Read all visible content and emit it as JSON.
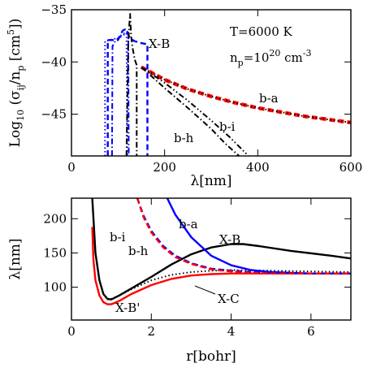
{
  "chart_data": [
    {
      "type": "line",
      "xlabel": "λ[nm]",
      "ylabel": "Log10 (σij/np [cm5])",
      "xlim": [
        0,
        600
      ],
      "ylim": [
        -49,
        -35
      ],
      "xticks": [
        0,
        200,
        400,
        600
      ],
      "yticks": [
        -35,
        -40,
        -45
      ],
      "annotations": {
        "temperature": "T=6000 K",
        "density": "np=10^20 cm^-3",
        "xb": "X-B",
        "ba": "b-a",
        "bi": "b-i",
        "bh": "b-h"
      },
      "series": [
        {
          "key": "b-a",
          "color": "#ff0000",
          "style": "dashed-thick",
          "x": [
            150,
            200,
            250,
            300,
            350,
            400,
            450,
            500,
            550,
            600
          ],
          "y": [
            -40.5,
            -41.7,
            -42.6,
            -43.3,
            -43.9,
            -44.4,
            -44.8,
            -45.2,
            -45.5,
            -45.8
          ]
        },
        {
          "key": "b-a-dots",
          "color": "#000000",
          "style": "dotted",
          "x": [
            150,
            200,
            250,
            300,
            350,
            400,
            450,
            500,
            550,
            600
          ],
          "y": [
            -40.5,
            -41.7,
            -42.6,
            -43.3,
            -43.9,
            -44.4,
            -44.8,
            -45.2,
            -45.5,
            -45.8
          ]
        },
        {
          "key": "b-i",
          "color": "#000000",
          "style": "dashdot",
          "x": [
            150,
            200,
            250,
            300,
            330,
            360
          ],
          "y": [
            -40.5,
            -42.5,
            -44.4,
            -46.4,
            -47.8,
            -49.0
          ]
        },
        {
          "key": "b-h",
          "color": "#000000",
          "style": "dashdotdot",
          "x": [
            150,
            200,
            250,
            300,
            340,
            380
          ],
          "y": [
            -40.5,
            -42.0,
            -43.7,
            -45.6,
            -47.2,
            -49.0
          ]
        },
        {
          "key": "X-B-blue-dash",
          "color": "#0000ff",
          "style": "dashed",
          "x": [
            78,
            78,
            100,
            105,
            110,
            115,
            119,
            125,
            135,
            150,
            162,
            163,
            163
          ],
          "y": [
            -49,
            -37.9,
            -37.9,
            -37.4,
            -37.0,
            -36.9,
            -37.1,
            -37.7,
            -38.0,
            -38.2,
            -38.3,
            -38.3,
            -49
          ]
        },
        {
          "key": "X-B-blue-dashdot",
          "color": "#0000ff",
          "style": "dashdot",
          "x": [
            87,
            88,
            95,
            105,
            112,
            118,
            120,
            122,
            123
          ],
          "y": [
            -49,
            -38.5,
            -37.9,
            -37.6,
            -37.4,
            -37.2,
            -37.1,
            -37.2,
            -49
          ]
        },
        {
          "key": "X-B-blue-dotted",
          "color": "#0000ff",
          "style": "dotted",
          "x": [
            72,
            72,
            100,
            110,
            118,
            120
          ],
          "y": [
            -49,
            -38.0,
            -37.7,
            -37.3,
            -37.2,
            -49
          ]
        },
        {
          "key": "X-B-black-spike",
          "color": "#000000",
          "style": "dashdot",
          "x": [
            118,
            122,
            124,
            126,
            128,
            131,
            136,
            140,
            140
          ],
          "y": [
            -49,
            -38.2,
            -36.5,
            -35.4,
            -37.5,
            -38.6,
            -39.8,
            -40.3,
            -49
          ]
        }
      ]
    },
    {
      "type": "line",
      "xlabel": "r[bohr]",
      "ylabel": "λ[nm]",
      "xlim": [
        0,
        7
      ],
      "ylim": [
        52,
        230
      ],
      "xticks": [
        0,
        2,
        4,
        6
      ],
      "yticks": [
        100,
        150,
        200
      ],
      "annotations": {
        "ba": "b-a",
        "xb": "X-B",
        "bi": "b-i",
        "bh": "b-h",
        "xbp": "X-B'",
        "xc": "X-C"
      },
      "series": [
        {
          "key": "X-B",
          "color": "#000000",
          "style": "solid",
          "x": [
            0.52,
            0.6,
            0.7,
            0.8,
            0.9,
            1.0,
            1.2,
            1.5,
            2.0,
            2.5,
            3.0,
            3.5,
            4.0,
            4.3,
            4.7,
            5.5,
            6.5,
            7.0
          ],
          "y": [
            230,
            150,
            110,
            90,
            83,
            82,
            88,
            98,
            115,
            133,
            148,
            158,
            163,
            163,
            160,
            153,
            146,
            142
          ]
        },
        {
          "key": "X-B'",
          "color": "#ff0000",
          "style": "solid",
          "x": [
            0.52,
            0.55,
            0.6,
            0.7,
            0.8,
            0.9,
            1.0,
            1.2,
            1.5,
            2.0,
            2.5,
            3.0,
            3.5,
            4.0,
            5.0,
            6.0,
            7.0
          ],
          "y": [
            188,
            140,
            110,
            88,
            78,
            75,
            75,
            80,
            90,
            103,
            112,
            117,
            119,
            120,
            120,
            120,
            120
          ]
        },
        {
          "key": "X-C",
          "color": "#000000",
          "style": "dotted",
          "x": [
            0.9,
            1.0,
            1.2,
            1.5,
            2.0,
            2.5,
            3.0,
            3.5,
            4.0,
            5.0,
            6.0,
            7.0
          ],
          "y": [
            82,
            83,
            88,
            97,
            110,
            118,
            122,
            124,
            125,
            124,
            123,
            122
          ]
        },
        {
          "key": "b-a",
          "color": "#0000ff",
          "style": "solid",
          "x": [
            2.4,
            2.6,
            3.0,
            3.5,
            4.0,
            4.5,
            5.0,
            5.5,
            6.0,
            6.5,
            7.0
          ],
          "y": [
            230,
            206,
            173,
            146,
            132,
            125,
            122,
            121,
            120,
            120,
            120
          ]
        },
        {
          "key": "b-i",
          "color": "#0000ff",
          "style": "dashed",
          "x": [
            1.65,
            1.8,
            2.0,
            2.3,
            2.6,
            3.0,
            3.5,
            4.0,
            4.5,
            5.0,
            6.0,
            7.0
          ],
          "y": [
            230,
            205,
            182,
            160,
            146,
            135,
            127,
            124,
            122,
            121,
            120,
            120
          ]
        },
        {
          "key": "b-h",
          "color": "#ff0000",
          "style": "dashed",
          "x": [
            1.65,
            1.8,
            2.0,
            2.3,
            2.6,
            3.0,
            3.5,
            4.0,
            4.5,
            5.0,
            6.0,
            7.0
          ],
          "y": [
            230,
            203,
            180,
            158,
            144,
            134,
            126,
            123,
            121,
            120,
            120,
            120
          ]
        }
      ]
    }
  ]
}
